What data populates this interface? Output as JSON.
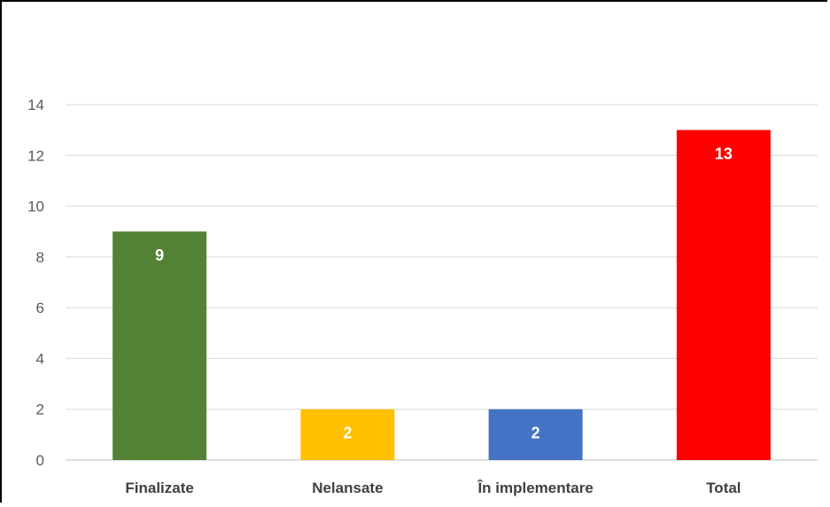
{
  "chart_data": {
    "type": "bar",
    "categories": [
      "Finalizate",
      "Nelansate",
      "În implementare",
      "Total"
    ],
    "values": [
      9,
      2,
      2,
      13
    ],
    "bar_colors": [
      "#548235",
      "#FFC000",
      "#4472C4",
      "#FF0000"
    ],
    "title": "",
    "xlabel": "",
    "ylabel": "",
    "ylim": [
      0,
      14
    ],
    "y_ticks": [
      "0",
      "2",
      "4",
      "6",
      "8",
      "10",
      "12",
      "14"
    ],
    "grid": true,
    "data_labels": [
      "9",
      "2",
      "2",
      "13"
    ]
  }
}
